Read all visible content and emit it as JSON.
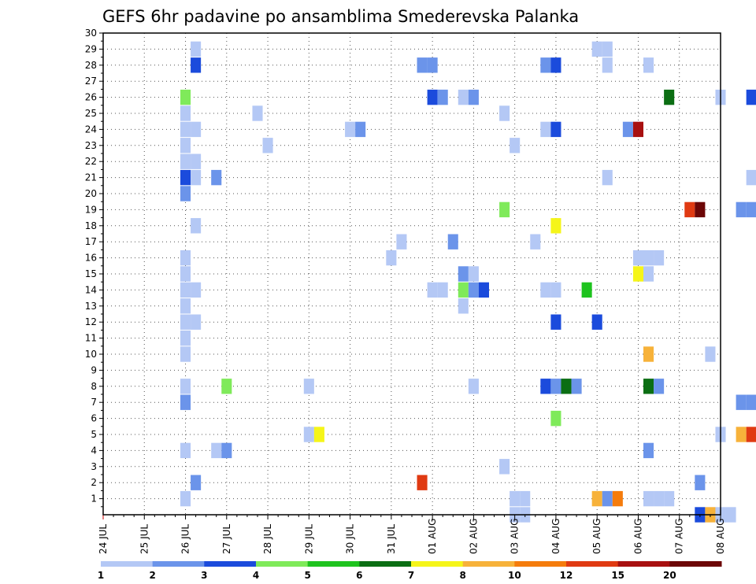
{
  "chart_data": {
    "type": "heatmap",
    "title": "GEFS 6hr padavine po ansamblima Smederevska Palanka",
    "y_ticks": [
      "1",
      "2",
      "3",
      "4",
      "5",
      "6",
      "7",
      "8",
      "9",
      "10",
      "11",
      "12",
      "13",
      "14",
      "15",
      "16",
      "17",
      "18",
      "19",
      "20",
      "21",
      "22",
      "23",
      "24",
      "25",
      "26",
      "27",
      "28",
      "29",
      "30"
    ],
    "ylim": [
      0,
      30
    ],
    "x_ticks": [
      "24 JUL",
      "25 JUL",
      "26 JUL",
      "27 JUL",
      "28 JUL",
      "29 JUL",
      "30 JUL",
      "31 JUL",
      "01 AUG",
      "02 AUG",
      "03 AUG",
      "04 AUG",
      "05 AUG",
      "06 AUG",
      "07 AUG",
      "08 AUG"
    ],
    "xlim_days": [
      0,
      15
    ],
    "grid": true,
    "colorbar": {
      "ticks": [
        "1",
        "2",
        "3",
        "4",
        "5",
        "6",
        "7",
        "8",
        "10",
        "12",
        "15",
        "20"
      ],
      "colors": [
        "#b4c8f5",
        "#6b94ea",
        "#1b4bdc",
        "#7fea5a",
        "#1ec31e",
        "#0b6e13",
        "#f5f519",
        "#f7b23a",
        "#f57c0c",
        "#e03a12",
        "#a81010",
        "#6c0606"
      ]
    },
    "cells": [
      {
        "t": 2.0,
        "m": 1,
        "c": 0
      },
      {
        "t": 2.0,
        "m": 4,
        "c": 0
      },
      {
        "t": 2.0,
        "m": 7,
        "c": 1
      },
      {
        "t": 2.0,
        "m": 8,
        "c": 0
      },
      {
        "t": 2.0,
        "m": 10,
        "c": 0
      },
      {
        "t": 2.0,
        "m": 11,
        "c": 0
      },
      {
        "t": 2.0,
        "m": 12,
        "c": 0
      },
      {
        "t": 2.0,
        "m": 13,
        "c": 0
      },
      {
        "t": 2.0,
        "m": 14,
        "c": 0
      },
      {
        "t": 2.0,
        "m": 15,
        "c": 0
      },
      {
        "t": 2.0,
        "m": 16,
        "c": 0
      },
      {
        "t": 2.0,
        "m": 20,
        "c": 1
      },
      {
        "t": 2.0,
        "m": 21,
        "c": 2
      },
      {
        "t": 2.0,
        "m": 22,
        "c": 0
      },
      {
        "t": 2.0,
        "m": 23,
        "c": 0
      },
      {
        "t": 2.0,
        "m": 24,
        "c": 0
      },
      {
        "t": 2.0,
        "m": 25,
        "c": 0
      },
      {
        "t": 2.0,
        "m": 26,
        "c": 3
      },
      {
        "t": 2.25,
        "m": 2,
        "c": 1
      },
      {
        "t": 2.25,
        "m": 12,
        "c": 0
      },
      {
        "t": 2.25,
        "m": 14,
        "c": 0
      },
      {
        "t": 2.25,
        "m": 18,
        "c": 0
      },
      {
        "t": 2.25,
        "m": 21,
        "c": 0
      },
      {
        "t": 2.25,
        "m": 22,
        "c": 0
      },
      {
        "t": 2.25,
        "m": 24,
        "c": 0
      },
      {
        "t": 2.25,
        "m": 28,
        "c": 2
      },
      {
        "t": 2.25,
        "m": 29,
        "c": 0
      },
      {
        "t": 2.75,
        "m": 4,
        "c": 0
      },
      {
        "t": 2.75,
        "m": 21,
        "c": 1
      },
      {
        "t": 3.0,
        "m": 4,
        "c": 1
      },
      {
        "t": 3.0,
        "m": 8,
        "c": 3
      },
      {
        "t": 3.75,
        "m": 25,
        "c": 0
      },
      {
        "t": 4.0,
        "m": 23,
        "c": 0
      },
      {
        "t": 5.0,
        "m": 5,
        "c": 0
      },
      {
        "t": 5.0,
        "m": 8,
        "c": 0
      },
      {
        "t": 5.25,
        "m": 5,
        "c": 6
      },
      {
        "t": 6.0,
        "m": 24,
        "c": 0
      },
      {
        "t": 6.25,
        "m": 24,
        "c": 1
      },
      {
        "t": 7.0,
        "m": 16,
        "c": 0
      },
      {
        "t": 7.25,
        "m": 17,
        "c": 0
      },
      {
        "t": 7.75,
        "m": 2,
        "c": 9
      },
      {
        "t": 7.75,
        "m": 28,
        "c": 1
      },
      {
        "t": 8.0,
        "m": 14,
        "c": 0
      },
      {
        "t": 8.0,
        "m": 26,
        "c": 2
      },
      {
        "t": 8.0,
        "m": 28,
        "c": 1
      },
      {
        "t": 8.25,
        "m": 14,
        "c": 0
      },
      {
        "t": 8.25,
        "m": 26,
        "c": 1
      },
      {
        "t": 8.5,
        "m": 17,
        "c": 1
      },
      {
        "t": 8.75,
        "m": 13,
        "c": 0
      },
      {
        "t": 8.75,
        "m": 14,
        "c": 3
      },
      {
        "t": 8.75,
        "m": 15,
        "c": 1
      },
      {
        "t": 8.75,
        "m": 26,
        "c": 0
      },
      {
        "t": 9.0,
        "m": 8,
        "c": 0
      },
      {
        "t": 9.0,
        "m": 14,
        "c": 1
      },
      {
        "t": 9.0,
        "m": 15,
        "c": 0
      },
      {
        "t": 9.0,
        "m": 26,
        "c": 1
      },
      {
        "t": 9.25,
        "m": 14,
        "c": 2
      },
      {
        "t": 9.75,
        "m": 3,
        "c": 0
      },
      {
        "t": 9.75,
        "m": 19,
        "c": 3
      },
      {
        "t": 9.75,
        "m": 25,
        "c": 0
      },
      {
        "t": 10.0,
        "m": 0,
        "c": 0
      },
      {
        "t": 10.0,
        "m": 1,
        "c": 0
      },
      {
        "t": 10.0,
        "m": 23,
        "c": 0
      },
      {
        "t": 10.25,
        "m": 0,
        "c": 0
      },
      {
        "t": 10.25,
        "m": 1,
        "c": 0
      },
      {
        "t": 10.5,
        "m": 17,
        "c": 0
      },
      {
        "t": 10.75,
        "m": 8,
        "c": 2
      },
      {
        "t": 10.75,
        "m": 14,
        "c": 0
      },
      {
        "t": 10.75,
        "m": 24,
        "c": 0
      },
      {
        "t": 10.75,
        "m": 28,
        "c": 1
      },
      {
        "t": 11.0,
        "m": 6,
        "c": 3
      },
      {
        "t": 11.0,
        "m": 8,
        "c": 1
      },
      {
        "t": 11.0,
        "m": 12,
        "c": 2
      },
      {
        "t": 11.0,
        "m": 14,
        "c": 0
      },
      {
        "t": 11.0,
        "m": 18,
        "c": 6
      },
      {
        "t": 11.0,
        "m": 24,
        "c": 2
      },
      {
        "t": 11.0,
        "m": 28,
        "c": 2
      },
      {
        "t": 11.25,
        "m": 8,
        "c": 5
      },
      {
        "t": 11.5,
        "m": 8,
        "c": 1
      },
      {
        "t": 11.75,
        "m": 14,
        "c": 4
      },
      {
        "t": 12.0,
        "m": 1,
        "c": 7
      },
      {
        "t": 12.0,
        "m": 12,
        "c": 2
      },
      {
        "t": 12.0,
        "m": 29,
        "c": 0
      },
      {
        "t": 12.25,
        "m": 1,
        "c": 1
      },
      {
        "t": 12.25,
        "m": 21,
        "c": 0
      },
      {
        "t": 12.25,
        "m": 28,
        "c": 0
      },
      {
        "t": 12.25,
        "m": 29,
        "c": 0
      },
      {
        "t": 12.5,
        "m": 1,
        "c": 8
      },
      {
        "t": 12.75,
        "m": 24,
        "c": 1
      },
      {
        "t": 13.0,
        "m": 15,
        "c": 6
      },
      {
        "t": 13.0,
        "m": 16,
        "c": 0
      },
      {
        "t": 13.0,
        "m": 24,
        "c": 10
      },
      {
        "t": 13.25,
        "m": 1,
        "c": 0
      },
      {
        "t": 13.25,
        "m": 4,
        "c": 1
      },
      {
        "t": 13.25,
        "m": 8,
        "c": 5
      },
      {
        "t": 13.25,
        "m": 10,
        "c": 7
      },
      {
        "t": 13.25,
        "m": 15,
        "c": 0
      },
      {
        "t": 13.25,
        "m": 16,
        "c": 0
      },
      {
        "t": 13.25,
        "m": 28,
        "c": 0
      },
      {
        "t": 13.5,
        "m": 1,
        "c": 0
      },
      {
        "t": 13.5,
        "m": 8,
        "c": 1
      },
      {
        "t": 13.5,
        "m": 16,
        "c": 0
      },
      {
        "t": 13.75,
        "m": 1,
        "c": 0
      },
      {
        "t": 13.75,
        "m": 26,
        "c": 5
      },
      {
        "t": 14.25,
        "m": 19,
        "c": 9
      },
      {
        "t": 14.5,
        "m": 0,
        "c": 2
      },
      {
        "t": 14.5,
        "m": 2,
        "c": 1
      },
      {
        "t": 14.5,
        "m": 19,
        "c": 11
      },
      {
        "t": 14.75,
        "m": 0,
        "c": 7
      },
      {
        "t": 14.75,
        "m": 10,
        "c": 0
      },
      {
        "t": 15.0,
        "m": 0,
        "c": 0
      },
      {
        "t": 15.0,
        "m": 5,
        "c": 0
      },
      {
        "t": 15.0,
        "m": 26,
        "c": 0
      },
      {
        "t": 15.25,
        "m": 0,
        "c": 0
      },
      {
        "t": 15.5,
        "m": 5,
        "c": 7
      },
      {
        "t": 15.5,
        "m": 7,
        "c": 1
      },
      {
        "t": 15.5,
        "m": 19,
        "c": 1
      },
      {
        "t": 15.75,
        "m": 5,
        "c": 9
      },
      {
        "t": 15.75,
        "m": 7,
        "c": 1
      },
      {
        "t": 15.75,
        "m": 19,
        "c": 1
      },
      {
        "t": 15.75,
        "m": 21,
        "c": 0
      },
      {
        "t": 15.75,
        "m": 26,
        "c": 2
      }
    ]
  }
}
